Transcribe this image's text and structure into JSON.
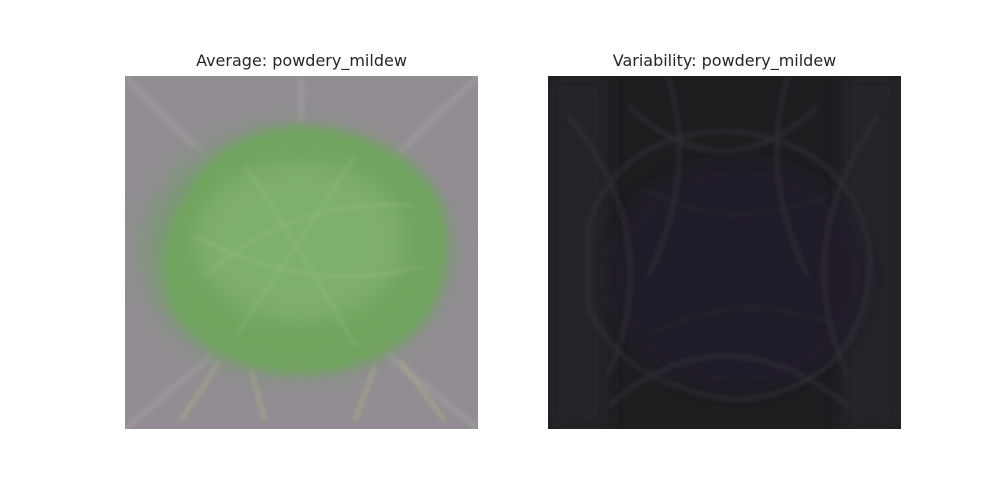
{
  "panels": [
    {
      "title": "Average: powdery_mildew",
      "kind": "average-image",
      "colors": {
        "background": "#918d92",
        "leaf_outer": "#789a6e",
        "leaf_inner": "#6fa85a",
        "leaf_highlight": "#8cbb78",
        "stem": "#a8a78f"
      }
    },
    {
      "title": "Variability: powdery_mildew",
      "kind": "variability-image",
      "colors": {
        "background": "#1e1e20",
        "edges": "#2e2e33",
        "leaf_tint": "#231f2d",
        "outline": "#3a3a42"
      }
    }
  ]
}
